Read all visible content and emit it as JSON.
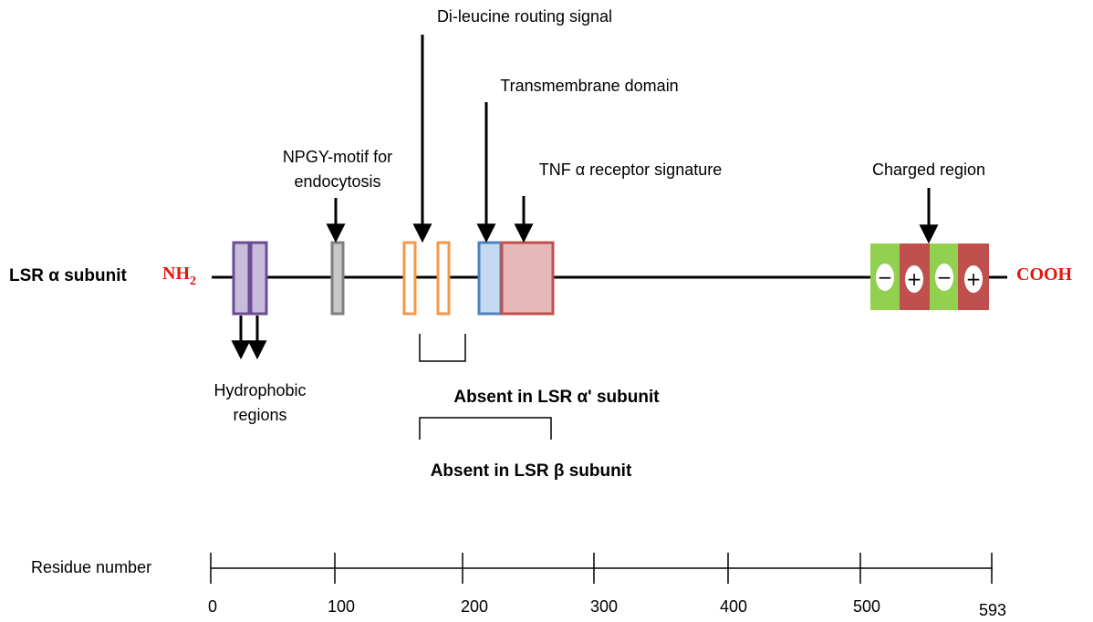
{
  "subunit_label": "LSR α subunit",
  "n_terminus": "NH",
  "n_terminus_sub": "2",
  "c_terminus": "COOH",
  "terminus_color": "#e8140f",
  "annotations": {
    "dileucine": "Di-leucine routing signal",
    "transmembrane": "Transmembrane domain",
    "npgy_line1": "NPGY-motif for",
    "npgy_line2": "endocytosis",
    "tnf": "TNF α receptor signature",
    "charged": "Charged region",
    "hydrophobic_line1": "Hydrophobic",
    "hydrophobic_line2": "regions"
  },
  "absent_alpha_prime": "Absent in LSR α' subunit",
  "absent_beta": "Absent in LSR β subunit",
  "charge_signs": [
    "−",
    "+",
    "−",
    "+"
  ],
  "axis": {
    "label": "Residue number",
    "ticks": [
      "0",
      "100",
      "200",
      "300",
      "400",
      "500",
      "593"
    ]
  },
  "colors": {
    "hydrophobic_fill": "#c9bcdb",
    "hydrophobic_stroke": "#6b4c93",
    "npgy_fill": "#c8c8c8",
    "npgy_stroke": "#7f7f7f",
    "dileucine_stroke": "#f79646",
    "transmembrane_fill": "#c5d9f1",
    "transmembrane_stroke": "#4f81bd",
    "tnf_fill": "#e6b9b8",
    "tnf_stroke": "#c0504d",
    "negative_fill": "#92d050",
    "positive_fill": "#c0504d"
  }
}
